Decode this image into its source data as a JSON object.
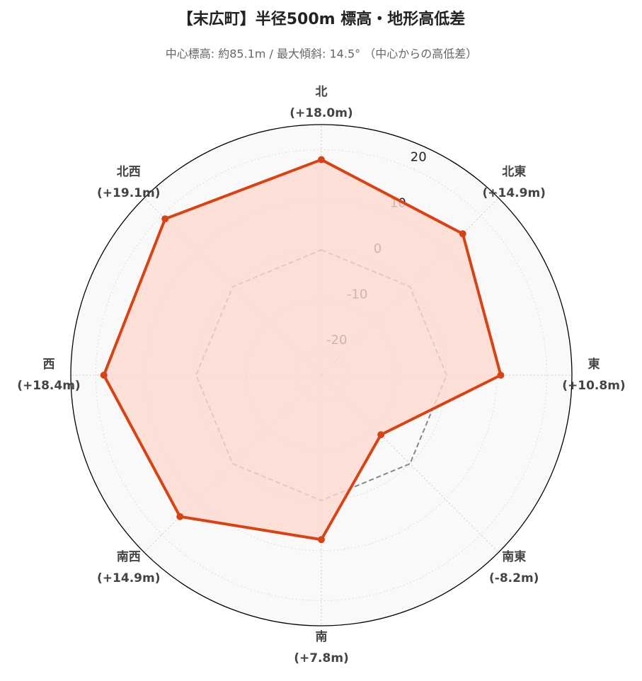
{
  "chart_data": {
    "type": "radar",
    "title": "【末広町】半径500m 標高・地形高低差",
    "subtitle": "中心標高: 約85.1m / 最大傾斜: 14.5° （中心からの高低差）",
    "categories": [
      "北",
      "北東",
      "東",
      "南東",
      "南",
      "南西",
      "西",
      "北西"
    ],
    "values": [
      18.0,
      14.9,
      10.8,
      -8.2,
      7.8,
      14.9,
      18.4,
      19.1
    ],
    "value_labels": [
      "(+18.0m)",
      "(+14.9m)",
      "(+10.8m)",
      "(-8.2m)",
      "(+7.8m)",
      "(+14.9m)",
      "(+18.4m)",
      "(+19.1m)"
    ],
    "color": "#d84315",
    "fill_color": "#fcd9cf",
    "ylim": [
      -25,
      25
    ],
    "yticks": [
      -20,
      -10,
      0,
      10,
      20
    ],
    "grid": true,
    "zero_line": true
  }
}
